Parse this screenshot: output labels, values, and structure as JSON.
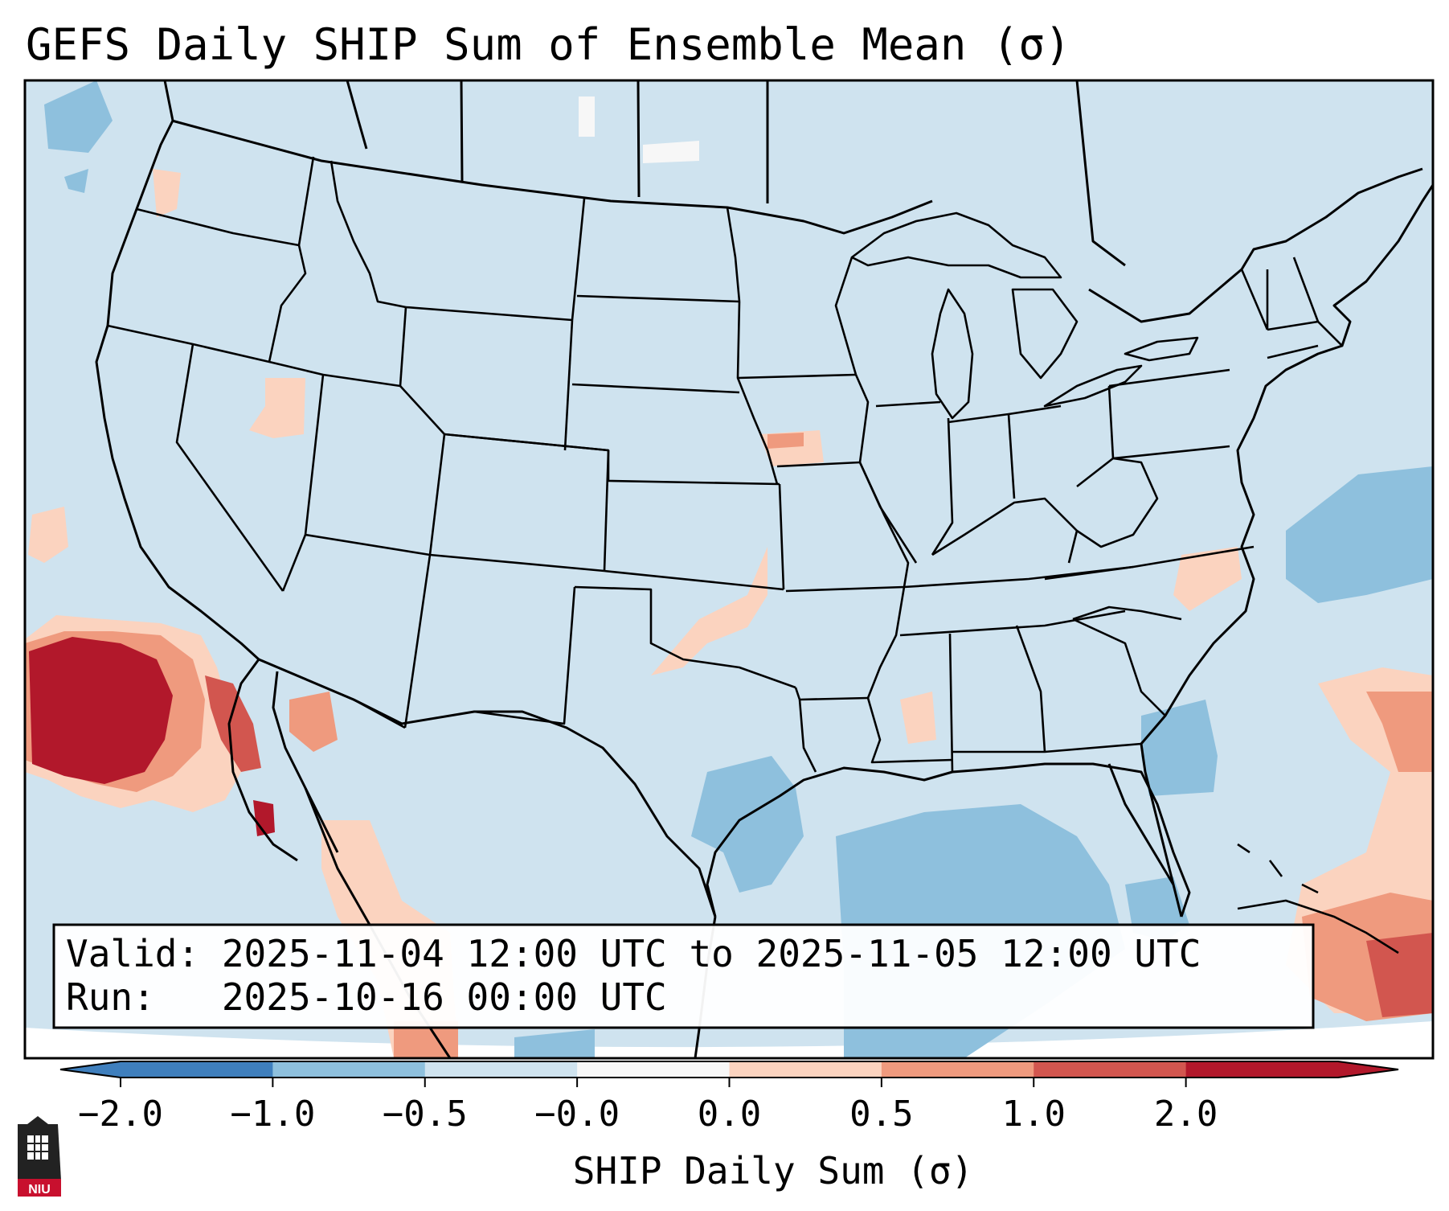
{
  "title": "GEFS Daily SHIP Sum of Ensemble Mean (σ)",
  "info_box": {
    "valid_line": "Valid: 2025-11-04 12:00 UTC to 2025-11-05 12:00 UTC",
    "run_line": "Run:   2025-10-16 00:00 UTC"
  },
  "colorbar": {
    "label": "SHIP Daily Sum (σ)",
    "ticks": [
      "−2.0",
      "−1.0",
      "−0.5",
      "−0.0",
      "0.0",
      "0.5",
      "1.0",
      "2.0"
    ],
    "colors": [
      "#3f7fbd",
      "#8ec0dd",
      "#cfe3ef",
      "#f7f7f7",
      "#fbd3bf",
      "#ef9a7e",
      "#d2564f",
      "#b2182b"
    ],
    "extend": "both"
  },
  "map": {
    "region": "Contiguous United States",
    "background_color": "#cfe3ef",
    "features": [
      "coastlines",
      "state borders",
      "country borders",
      "great lakes"
    ],
    "anomaly_regions": [
      {
        "location": "Pacific off Baja California",
        "level": "strong positive"
      },
      {
        "location": "Gulf of California",
        "level": "positive"
      },
      {
        "location": "Oklahoma / Texas border",
        "level": "weak positive"
      },
      {
        "location": "Iowa",
        "level": "weak positive"
      },
      {
        "location": "Western Atlantic",
        "level": "weak negative"
      },
      {
        "location": "Gulf of Mexico",
        "level": "weak negative"
      },
      {
        "location": "Caribbean",
        "level": "positive"
      }
    ]
  },
  "logo": {
    "text": "NIU"
  }
}
